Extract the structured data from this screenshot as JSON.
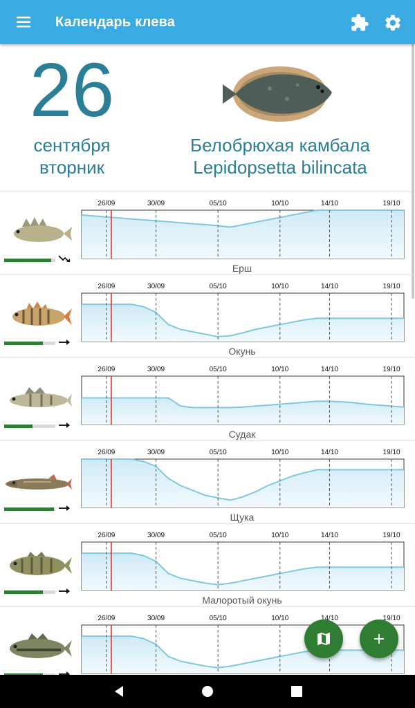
{
  "app_bar": {
    "title": "Календарь клева",
    "menu_icon": "hamburger-menu-icon",
    "puzzle_icon": "puzzle-icon",
    "settings_icon": "gear-icon"
  },
  "header": {
    "day": "26",
    "month": "сентября",
    "weekday": "вторник",
    "fish_name": "Белобрюхая камбала",
    "fish_latin": "Lepidopsetta bilincata"
  },
  "colors": {
    "accent": "#3aaae2",
    "text_accent": "#2a7f97",
    "line": "#7fc8e0",
    "fab": "#2e7d32",
    "today_marker": "#c62828"
  },
  "chart_data": {
    "type": "line",
    "x": [
      "24/09",
      "25/09",
      "26/09",
      "27/09",
      "28/09",
      "29/09",
      "30/09",
      "01/10",
      "02/10",
      "03/10",
      "04/10",
      "05/10",
      "06/10",
      "07/10",
      "08/10",
      "09/10",
      "10/10",
      "11/10",
      "12/10",
      "13/10",
      "14/10",
      "15/10",
      "16/10",
      "17/10",
      "18/10",
      "19/10",
      "20/10"
    ],
    "tick_labels": [
      "26/09",
      "30/09",
      "05/10",
      "10/10",
      "14/10",
      "19/10"
    ],
    "today": "26/09",
    "ylim": [
      0,
      100
    ],
    "series": [
      {
        "name": "Ерш",
        "trend": "down",
        "activity": 0.92,
        "values": [
          90,
          88,
          86,
          84,
          82,
          80,
          78,
          76,
          74,
          72,
          70,
          68,
          65,
          70,
          75,
          80,
          85,
          90,
          95,
          100,
          100,
          100,
          100,
          100,
          100,
          100,
          100
        ]
      },
      {
        "name": "Окунь",
        "trend": "flat",
        "activity": 0.75,
        "values": [
          77,
          77,
          77,
          77,
          77,
          72,
          60,
          35,
          25,
          20,
          15,
          10,
          12,
          18,
          25,
          30,
          35,
          40,
          45,
          48,
          48,
          48,
          48,
          48,
          48,
          48,
          48
        ]
      },
      {
        "name": "Судак",
        "trend": "flat",
        "activity": 0.55,
        "values": [
          55,
          55,
          55,
          55,
          55,
          55,
          55,
          55,
          38,
          35,
          35,
          35,
          35,
          36,
          38,
          40,
          42,
          44,
          46,
          48,
          48,
          47,
          45,
          42,
          40,
          38,
          36
        ]
      },
      {
        "name": "Щука",
        "trend": "flat",
        "activity": 0.97,
        "values": [
          100,
          100,
          100,
          100,
          100,
          95,
          85,
          60,
          45,
          35,
          25,
          20,
          15,
          22,
          32,
          45,
          55,
          65,
          72,
          78,
          78,
          78,
          78,
          78,
          78,
          78,
          78
        ]
      },
      {
        "name": "Малоротый окунь",
        "trend": "flat",
        "activity": 0.75,
        "values": [
          77,
          77,
          77,
          77,
          77,
          72,
          60,
          35,
          25,
          20,
          15,
          12,
          15,
          20,
          25,
          30,
          35,
          40,
          45,
          48,
          48,
          48,
          48,
          48,
          48,
          48,
          48
        ]
      },
      {
        "name": "",
        "trend": "flat",
        "activity": 0.75,
        "values": [
          77,
          77,
          77,
          77,
          77,
          72,
          60,
          35,
          25,
          20,
          15,
          12,
          15,
          20,
          25,
          30,
          35,
          40,
          45,
          48,
          48,
          48,
          48,
          48,
          48,
          48,
          48
        ]
      }
    ]
  },
  "fab": {
    "map_icon": "map-icon",
    "add_icon": "plus-icon"
  },
  "nav": {
    "back_icon": "back-icon",
    "home_icon": "home-icon",
    "recent_icon": "recent-apps-icon"
  }
}
